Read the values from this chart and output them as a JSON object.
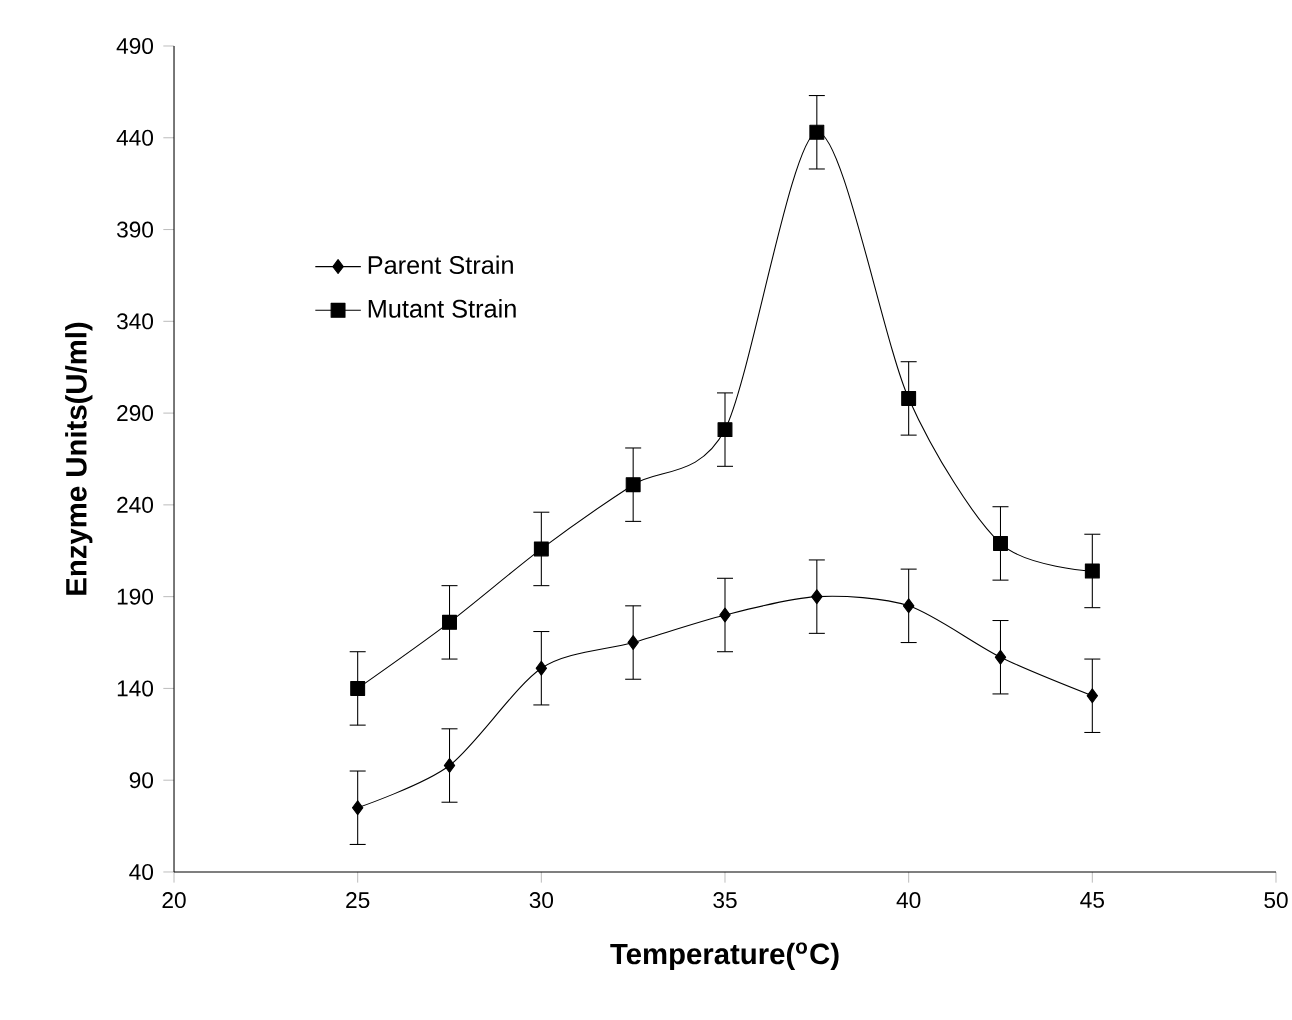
{
  "chart_data": {
    "type": "line",
    "xlabel": "Temperature($^{o}$C)",
    "ylabel": "Enzyme Units(U/ml)",
    "x": [
      25,
      27.5,
      30,
      32.5,
      35,
      37.5,
      40,
      42.5,
      45
    ],
    "series": [
      {
        "name": "Parent Strain",
        "color": "#000000",
        "marker": "diamond",
        "values": [
          75,
          98,
          151,
          165,
          180,
          190,
          185,
          157,
          136
        ],
        "errors": [
          20,
          20,
          20,
          20,
          20,
          20,
          20,
          20,
          20
        ]
      },
      {
        "name": "Mutant Strain",
        "color": "#000000",
        "marker": "square",
        "values": [
          140,
          176,
          216,
          251,
          281,
          443,
          298,
          219,
          204
        ],
        "errors": [
          20,
          20,
          20,
          20,
          20,
          20,
          20,
          20,
          20
        ]
      }
    ],
    "xlim": [
      20,
      50
    ],
    "ylim": [
      40,
      490
    ],
    "xticks": [
      20,
      25,
      30,
      35,
      40,
      45,
      50
    ],
    "yticks": [
      40,
      90,
      140,
      190,
      240,
      290,
      340,
      390,
      440,
      490
    ],
    "legend": "top left",
    "grid": false,
    "line_style": "solid"
  }
}
